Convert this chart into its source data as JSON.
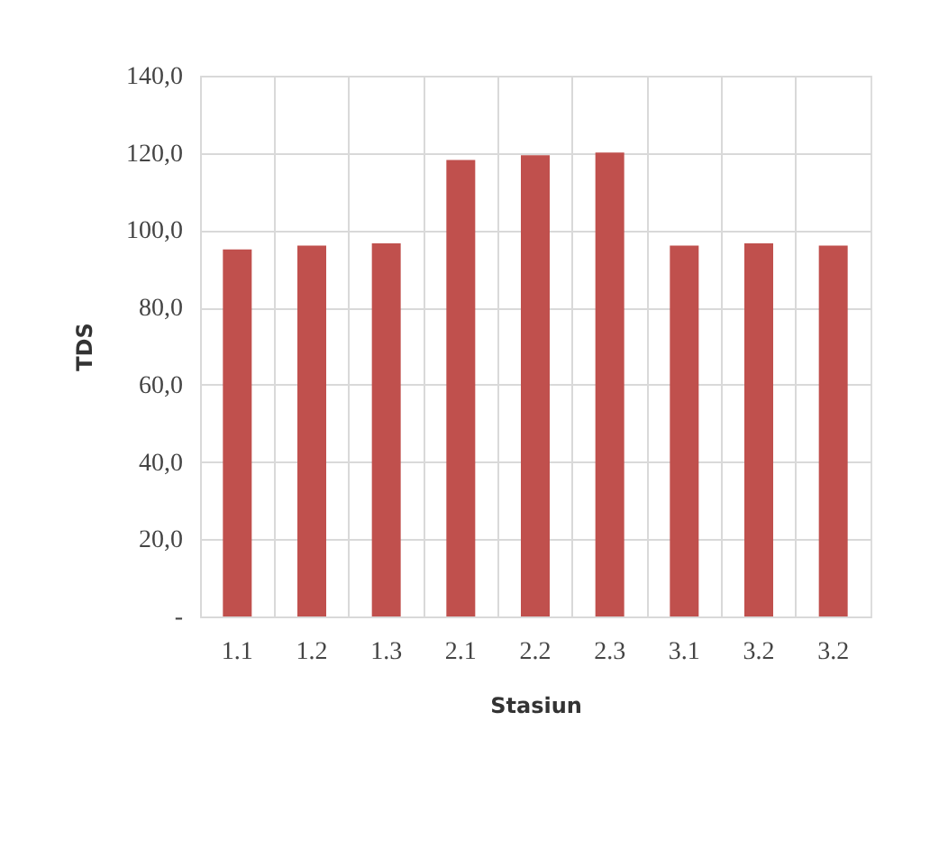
{
  "chart_data": {
    "type": "bar",
    "xlabel": "Stasiun",
    "ylabel": "TDS",
    "categories": [
      "1.1",
      "1.2",
      "1.3",
      "2.1",
      "2.2",
      "2.3",
      "3.1",
      "3.2",
      "3.2"
    ],
    "values": [
      95.0,
      96.0,
      96.6,
      118.2,
      119.4,
      120.1,
      96.0,
      96.6,
      96.0
    ],
    "color": "#c0504d",
    "ylim": [
      0,
      140
    ],
    "yticks": [
      {
        "value": 0,
        "label": "-"
      },
      {
        "value": 20,
        "label": "20,0"
      },
      {
        "value": 40,
        "label": "40,0"
      },
      {
        "value": 60,
        "label": "60,0"
      },
      {
        "value": 80,
        "label": "80,0"
      },
      {
        "value": 100,
        "label": "100,0"
      },
      {
        "value": 120,
        "label": "120,0"
      },
      {
        "value": 140,
        "label": "140,0"
      }
    ],
    "grid": true
  }
}
